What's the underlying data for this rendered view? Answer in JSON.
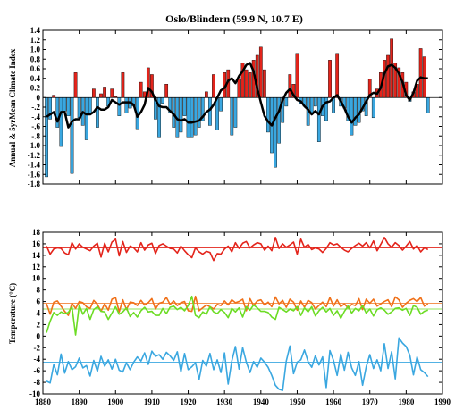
{
  "figure": {
    "title": "Oslo/Blindern (59.9 N, 10.7 E)"
  },
  "chart_data": [
    {
      "type": "bar",
      "title": "Oslo/Blindern (59.9 N, 10.7 E)",
      "ylabel": "Annual & 5yrMean Climate Index",
      "xlim": [
        1880,
        1990
      ],
      "ylim": [
        -1.8,
        1.4
      ],
      "yticks": [
        "1.4",
        "1.2",
        "1.0",
        "0.8",
        "0.6",
        "0.4",
        "0.2",
        "0",
        "-.2",
        "-.4",
        "-.6",
        "-.8",
        "-1.0",
        "-1.2",
        "-1.4",
        "-1.6",
        "-1.8"
      ],
      "colors": {
        "positive": "#e3241b",
        "negative": "#3aa7e0",
        "smooth": "#000000"
      },
      "years_start": 1881,
      "annual": [
        -1.65,
        -0.45,
        0.05,
        -0.62,
        -1.02,
        -0.28,
        -0.38,
        -1.58,
        0.52,
        -0.42,
        -0.58,
        -0.88,
        -0.32,
        0.18,
        -0.62,
        0.08,
        0.22,
        -0.18,
        0.18,
        0.02,
        -0.38,
        0.52,
        -0.32,
        -0.22,
        -0.18,
        -0.65,
        0.32,
        0.12,
        0.62,
        0.48,
        -0.45,
        -0.82,
        -0.12,
        0.28,
        -0.32,
        -0.62,
        -0.82,
        -0.72,
        -0.38,
        -0.82,
        -0.82,
        -0.78,
        -0.62,
        -0.48,
        0.12,
        -0.58,
        0.48,
        -0.68,
        -0.28,
        0.52,
        0.58,
        -0.78,
        -0.62,
        0.38,
        0.72,
        0.58,
        0.52,
        0.78,
        0.88,
        1.05,
        0.58,
        -0.72,
        -1.15,
        -1.45,
        -0.95,
        -0.52,
        -0.18,
        0.48,
        0.28,
        0.92,
        -0.12,
        -0.18,
        -0.58,
        -0.32,
        -0.18,
        -0.92,
        -0.38,
        -0.48,
        0.78,
        -0.32,
        0.92,
        -0.18,
        -0.22,
        -0.48,
        -0.78,
        -0.58,
        -0.52,
        -0.28,
        -0.38,
        0.38,
        -0.42,
        0.18,
        0.52,
        0.78,
        0.88,
        1.22,
        0.72,
        0.62,
        0.52,
        0.32,
        -0.08,
        0.12,
        0.28,
        1.02,
        0.85,
        -0.32
      ],
      "smooth_5yr": [
        -0.4,
        -0.35,
        -0.3,
        -0.5,
        -0.3,
        -0.3,
        -0.62,
        -0.5,
        -0.45,
        -0.45,
        -0.3,
        -0.35,
        -0.35,
        -0.3,
        -0.2,
        -0.25,
        -0.25,
        -0.2,
        -0.05,
        -0.1,
        -0.15,
        -0.1,
        -0.1,
        -0.1,
        -0.15,
        -0.4,
        -0.3,
        -0.15,
        0.2,
        0.12,
        -0.05,
        -0.18,
        -0.2,
        -0.2,
        -0.28,
        -0.35,
        -0.45,
        -0.48,
        -0.45,
        -0.52,
        -0.52,
        -0.5,
        -0.48,
        -0.4,
        -0.3,
        -0.25,
        -0.15,
        0.0,
        0.15,
        0.2,
        0.35,
        0.4,
        0.3,
        0.45,
        0.55,
        0.68,
        0.72,
        0.55,
        0.2,
        -0.1,
        -0.38,
        -0.5,
        -0.58,
        -0.42,
        -0.28,
        -0.05,
        0.1,
        0.18,
        0.05,
        -0.05,
        -0.08,
        -0.18,
        -0.25,
        -0.35,
        -0.28,
        -0.35,
        -0.18,
        -0.1,
        -0.08,
        0.0,
        0.05,
        -0.08,
        -0.22,
        -0.4,
        -0.52,
        -0.42,
        -0.35,
        -0.22,
        -0.08,
        0.05,
        0.1,
        0.08,
        0.2,
        0.5,
        0.65,
        0.68,
        0.62,
        0.5,
        0.32,
        0.05,
        -0.05,
        0.1,
        0.35,
        0.42,
        0.4,
        0.4
      ]
    },
    {
      "type": "line",
      "ylabel": "Temperature (°C)",
      "xlim": [
        1880,
        1990
      ],
      "ylim": [
        -10,
        18
      ],
      "xticks": [
        "1880",
        "1890",
        "1900",
        "1910",
        "1920",
        "1930",
        "1940",
        "1950",
        "1960",
        "1970",
        "1980",
        "1990"
      ],
      "yticks": [
        "18",
        "16",
        "14",
        "12",
        "10",
        "8",
        "6",
        "4",
        "2",
        "0",
        "-2",
        "-4",
        "-6",
        "-8",
        "-10"
      ],
      "years_start": 1881,
      "series": [
        {
          "color": "#e3241b",
          "mean": 15.3,
          "values": [
            15.6,
            14.2,
            15.1,
            15.3,
            15.2,
            14.4,
            14.1,
            16.2,
            15.1,
            16.0,
            15.4,
            15.1,
            14.8,
            15.6,
            16.1,
            13.7,
            16.1,
            14.6,
            16.3,
            16.8,
            13.9,
            16.4,
            14.5,
            15.6,
            15.3,
            14.6,
            16.2,
            14.9,
            15.8,
            16.1,
            14.3,
            15.7,
            16.0,
            15.6,
            15.2,
            15.1,
            14.4,
            15.6,
            14.8,
            14.1,
            13.6,
            15.3,
            14.6,
            14.2,
            14.7,
            14.5,
            13.1,
            14.3,
            14.2,
            15.1,
            15.6,
            14.6,
            16.2,
            15.2,
            16.1,
            16.4,
            15.3,
            15.8,
            16.2,
            16.0,
            14.9,
            15.6,
            14.8,
            17.1,
            15.2,
            16.0,
            15.4,
            15.8,
            16.3,
            14.2,
            16.8,
            15.4,
            15.9,
            15.0,
            15.3,
            15.1,
            14.5,
            15.2,
            16.2,
            15.8,
            16.0,
            15.4,
            14.9,
            14.6,
            15.2,
            15.7,
            16.1,
            15.6,
            16.2,
            15.3,
            16.5,
            14.8,
            15.9,
            17.1,
            16.0,
            15.4,
            16.2,
            15.7,
            14.9,
            15.6,
            16.4,
            15.1,
            15.7,
            14.6,
            15.3,
            15.0
          ]
        },
        {
          "color": "#f07018",
          "mean": 5.7,
          "values": [
            5.6,
            3.8,
            5.9,
            6.1,
            5.2,
            4.3,
            3.6,
            5.7,
            4.8,
            6.0,
            5.8,
            5.1,
            4.8,
            6.2,
            5.5,
            4.3,
            5.6,
            4.5,
            6.4,
            6.7,
            4.2,
            6.3,
            4.6,
            5.9,
            5.8,
            5.3,
            6.2,
            5.4,
            5.8,
            6.5,
            4.7,
            5.7,
            5.9,
            6.7,
            5.5,
            6.1,
            5.3,
            5.8,
            6.0,
            4.4,
            4.3,
            6.9,
            4.4,
            4.9,
            5.4,
            5.1,
            4.7,
            5.5,
            5.3,
            6.1,
            5.4,
            6.3,
            5.8,
            6.0,
            6.4,
            4.4,
            6.5,
            5.3,
            6.1,
            6.3,
            5.4,
            5.9,
            5.1,
            6.8,
            5.6,
            6.2,
            5.0,
            6.4,
            5.9,
            4.5,
            6.1,
            5.0,
            6.2,
            5.8,
            4.7,
            5.3,
            5.9,
            5.1,
            6.7,
            5.2,
            6.3,
            5.1,
            5.6,
            4.9,
            5.5,
            5.3,
            6.5,
            4.6,
            6.4,
            5.7,
            6.4,
            5.2,
            5.6,
            6.0,
            6.3,
            5.1,
            6.8,
            6.3,
            5.0,
            5.7,
            6.2,
            6.5,
            6.0,
            6.7,
            5.2,
            5.6
          ]
        },
        {
          "color": "#6cdc24",
          "mean": 4.7,
          "values": [
            0.6,
            2.6,
            4.1,
            3.6,
            4.2,
            3.9,
            4.1,
            5.1,
            0.2,
            5.4,
            3.8,
            4.8,
            2.9,
            4.6,
            5.1,
            4.3,
            4.2,
            2.9,
            4.0,
            5.1,
            3.8,
            4.2,
            4.9,
            3.4,
            4.1,
            3.3,
            4.4,
            5.0,
            4.2,
            4.3,
            3.6,
            3.6,
            4.8,
            3.9,
            5.0,
            5.2,
            4.6,
            5.0,
            4.4,
            5.3,
            6.9,
            3.6,
            3.2,
            4.2,
            3.8,
            5.1,
            4.2,
            3.9,
            4.6,
            4.1,
            3.2,
            4.8,
            4.2,
            4.9,
            3.3,
            5.1,
            4.5,
            5.4,
            4.9,
            4.3,
            4.3,
            4.1,
            3.3,
            2.9,
            5.0,
            4.6,
            4.2,
            4.7,
            4.4,
            5.1,
            3.6,
            4.9,
            4.2,
            5.1,
            3.5,
            4.4,
            5.0,
            4.2,
            4.8,
            3.6,
            4.4,
            3.1,
            4.3,
            5.2,
            4.0,
            4.8,
            4.4,
            5.3,
            4.0,
            4.7,
            3.5,
            4.6,
            4.9,
            4.5,
            3.8,
            4.2,
            4.8,
            4.9,
            4.5,
            4.8,
            3.6,
            5.3,
            5.0,
            3.8,
            4.3,
            4.5
          ]
        },
        {
          "color": "#3aa7e0",
          "mean": -4.5,
          "values": [
            -7.8,
            -8.1,
            -4.9,
            -6.7,
            -3.1,
            -6.4,
            -4.4,
            -5.8,
            -5.3,
            -3.8,
            -5.5,
            -5.1,
            -6.9,
            -4.2,
            -6.1,
            -3.5,
            -5.2,
            -4.1,
            -5.7,
            -4.0,
            -5.9,
            -6.2,
            -4.6,
            -5.8,
            -4.5,
            -3.6,
            -4.3,
            -2.9,
            -4.9,
            -2.6,
            -3.5,
            -3.2,
            -4.0,
            -2.8,
            -3.4,
            -4.2,
            -2.7,
            -6.2,
            -3.0,
            -5.8,
            -5.3,
            -4.6,
            -7.5,
            -4.2,
            -5.2,
            -3.0,
            -5.8,
            -4.1,
            -6.3,
            -2.9,
            -8.3,
            -4.3,
            -1.8,
            -5.7,
            -2.0,
            -4.5,
            -6.3,
            -4.4,
            -5.4,
            -3.8,
            -4.5,
            -5.4,
            -6.8,
            -8.5,
            -9.2,
            -9.4,
            -4.3,
            -1.7,
            -6.5,
            -4.5,
            -4.1,
            -2.4,
            -4.4,
            -5.4,
            -3.4,
            -5.0,
            -3.6,
            -8.9,
            -2.5,
            -4.2,
            -6.8,
            -3.1,
            -5.9,
            -2.8,
            -5.5,
            -6.8,
            -4.4,
            -8.5,
            -5.3,
            -3.2,
            -5.6,
            -4.1,
            -6.0,
            -1.3,
            -5.6,
            -2.7,
            -7.4,
            -0.3,
            -1.2,
            -1.8,
            -3.3,
            -6.7,
            -3.6,
            -5.8,
            -6.3,
            -7.0
          ]
        }
      ]
    }
  ]
}
